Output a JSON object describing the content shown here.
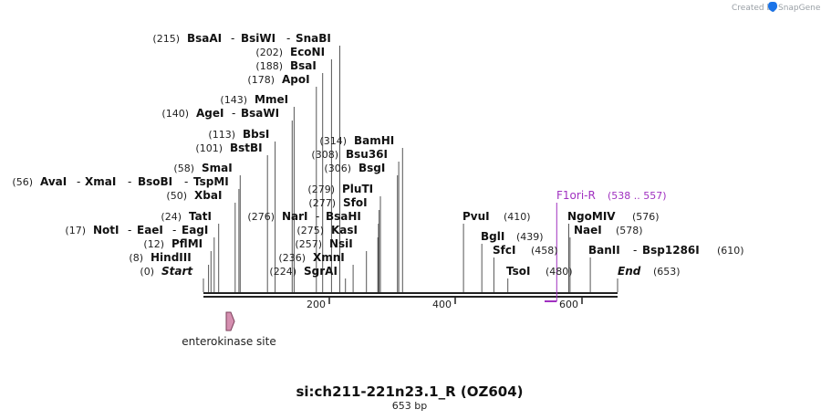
{
  "map": {
    "name": "si:ch211-221n23.1_R (OZ604)",
    "length_label": "653 bp",
    "length": 653,
    "credit": {
      "prefix": "Created by",
      "brand": "SnapGene"
    },
    "axis_ticks": [
      "200",
      "400",
      "600"
    ],
    "colors": {
      "backbone": "#222222",
      "primer": "#a030c0",
      "feature": "#d58fb0",
      "feature_stroke": "#7a3f5a",
      "brand": "#1a73e8"
    }
  },
  "features": [
    {
      "name": "enterokinase site",
      "start": 35,
      "end": 50
    }
  ],
  "primers": [
    {
      "name": "F1ori-R",
      "range": "(538 .. 557)",
      "start": 538,
      "end": 557
    }
  ],
  "site_rows": [
    {
      "pos": "(215)",
      "bp": 215,
      "enzymes": [
        "BsaAI",
        "BsiWI",
        "SnaBI"
      ]
    },
    {
      "pos": "(202)",
      "bp": 202,
      "enzymes": [
        "EcoNI"
      ]
    },
    {
      "pos": "(188)",
      "bp": 188,
      "enzymes": [
        "BsaI"
      ]
    },
    {
      "pos": "(178)",
      "bp": 178,
      "enzymes": [
        "ApoI"
      ]
    },
    {
      "pos": "(143)",
      "bp": 143,
      "enzymes": [
        "MmeI"
      ]
    },
    {
      "pos": "(140)",
      "bp": 140,
      "enzymes": [
        "AgeI",
        "BsaWI"
      ]
    },
    {
      "pos": "(113)",
      "bp": 113,
      "enzymes": [
        "BbsI"
      ]
    },
    {
      "pos": "(101)",
      "bp": 101,
      "enzymes": [
        "BstBI"
      ]
    },
    {
      "pos": "(58)",
      "bp": 58,
      "enzymes": [
        "SmaI"
      ]
    },
    {
      "pos": "(56)",
      "bp": 56,
      "enzymes": [
        "AvaI",
        "XmaI",
        "BsoBI",
        "TspMI"
      ]
    },
    {
      "pos": "(50)",
      "bp": 50,
      "enzymes": [
        "XbaI"
      ]
    },
    {
      "pos": "(24)",
      "bp": 24,
      "enzymes": [
        "TatI"
      ]
    },
    {
      "pos": "(17)",
      "bp": 17,
      "enzymes": [
        "NotI",
        "EaeI",
        "EagI"
      ]
    },
    {
      "pos": "(12)",
      "bp": 12,
      "enzymes": [
        "PflMI"
      ]
    },
    {
      "pos": "(8)",
      "bp": 8,
      "enzymes": [
        "HindIII"
      ]
    },
    {
      "pos": "(0)",
      "bp": 0,
      "enzymes": [
        "Start"
      ]
    },
    {
      "pos": "(314)",
      "bp": 314,
      "enzymes": [
        "BamHI"
      ]
    },
    {
      "pos": "(308)",
      "bp": 308,
      "enzymes": [
        "Bsu36I"
      ]
    },
    {
      "pos": "(306)",
      "bp": 306,
      "enzymes": [
        "BsgI"
      ]
    },
    {
      "pos": "(279)",
      "bp": 279,
      "enzymes": [
        "PluTI"
      ]
    },
    {
      "pos": "(277)",
      "bp": 277,
      "enzymes": [
        "SfoI"
      ]
    },
    {
      "pos": "(276)",
      "bp": 276,
      "enzymes": [
        "NarI",
        "BsaHI"
      ]
    },
    {
      "pos": "(275)",
      "bp": 275,
      "enzymes": [
        "KasI"
      ]
    },
    {
      "pos": "(257)",
      "bp": 257,
      "enzymes": [
        "NsiI"
      ]
    },
    {
      "pos": "(236)",
      "bp": 236,
      "enzymes": [
        "XmnI"
      ]
    },
    {
      "pos": "(224)",
      "bp": 224,
      "enzymes": [
        "SgrAI"
      ]
    },
    {
      "pos": "(410)",
      "bp": 410,
      "enzymes": [
        "PvuI"
      ]
    },
    {
      "pos": "(439)",
      "bp": 439,
      "enzymes": [
        "BglI"
      ]
    },
    {
      "pos": "(458)",
      "bp": 458,
      "enzymes": [
        "SfcI"
      ]
    },
    {
      "pos": "(480)",
      "bp": 480,
      "enzymes": [
        "TsoI"
      ]
    },
    {
      "pos": "(576)",
      "bp": 576,
      "enzymes": [
        "NgoMIV"
      ]
    },
    {
      "pos": "(578)",
      "bp": 578,
      "enzymes": [
        "NaeI"
      ]
    },
    {
      "pos": "(610)",
      "bp": 610,
      "enzymes": [
        "BanII",
        "Bsp1286I"
      ]
    },
    {
      "pos": "(653)",
      "bp": 653,
      "enzymes": [
        "End"
      ]
    }
  ]
}
